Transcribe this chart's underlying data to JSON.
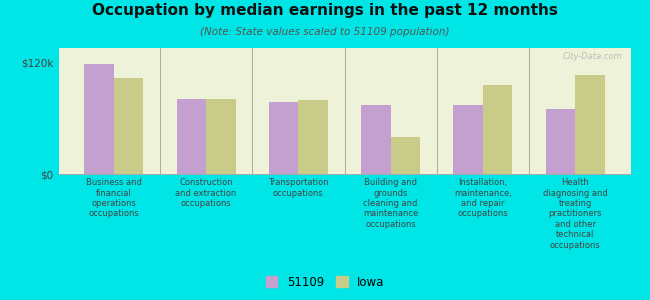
{
  "title": "Occupation by median earnings in the past 12 months",
  "subtitle": "(Note: State values scaled to 51109 population)",
  "background_color": "#00e5e5",
  "plot_bg_color": "#eef2d8",
  "categories": [
    "Business and\nfinancial\noperations\noccupations",
    "Construction\nand extraction\noccupations",
    "Transportation\noccupations",
    "Building and\ngrounds\ncleaning and\nmaintenance\noccupations",
    "Installation,\nmaintenance,\nand repair\noccupations",
    "Health\ndiagnosing and\ntreating\npractitioners\nand other\ntechnical\noccupations"
  ],
  "values_51109": [
    118000,
    80000,
    77000,
    74000,
    74000,
    70000
  ],
  "values_iowa": [
    103000,
    80000,
    79000,
    40000,
    95000,
    106000
  ],
  "color_51109": "#c4a0d0",
  "color_iowa": "#c8cc88",
  "ylabel_ticks": [
    "$0",
    "$120k"
  ],
  "ytick_values": [
    0,
    120000
  ],
  "ylim": [
    0,
    135000
  ],
  "legend_51109": "51109",
  "legend_iowa": "Iowa",
  "bar_width": 0.32,
  "watermark": "City-Data.com"
}
